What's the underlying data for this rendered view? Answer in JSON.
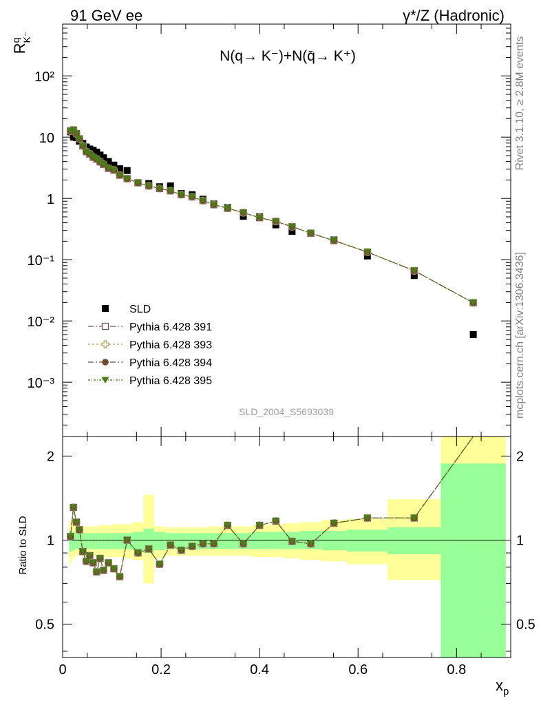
{
  "header": {
    "left": "91 GeV ee",
    "right": "γ*/Z (Hadronic)"
  },
  "side_labels": {
    "rivet": "Rivet 3.1.10, ≥ 2.8M events",
    "mcplots": "mcplots.cern.ch [arXiv:1306.3436]"
  },
  "watermark": "SLD_2004_S5693039",
  "colors": {
    "data": "#000000",
    "s391": "#7b4f62",
    "s393": "#a8a060",
    "s394": "#6e4a2e",
    "s395": "#4e7a1e",
    "band_inner": "#99ff99",
    "band_outer": "#ffff99"
  },
  "chart_data": [
    {
      "type": "scatter",
      "panel": "main",
      "title": "N(q→ K⁻)+N(q̄→ K⁺)",
      "xlabel": "xp",
      "ylabel": "R^q_K⁻",
      "xscale": "linear",
      "yscale": "log",
      "xlim": [
        0,
        0.91
      ],
      "ylim": [
        0.00013,
        700
      ],
      "y_tick_labels": [
        "10⁻³",
        "10⁻²",
        "10⁻¹",
        "1",
        "10",
        "10²"
      ],
      "legend_position": "middle-left",
      "x": [
        0.016,
        0.022,
        0.028,
        0.034,
        0.041,
        0.048,
        0.055,
        0.062,
        0.069,
        0.076,
        0.083,
        0.093,
        0.104,
        0.116,
        0.131,
        0.153,
        0.175,
        0.197,
        0.219,
        0.241,
        0.263,
        0.285,
        0.307,
        0.335,
        0.367,
        0.4,
        0.433,
        0.466,
        0.504,
        0.551,
        0.619,
        0.714,
        0.834
      ],
      "series": [
        {
          "name": "SLD",
          "marker": "square",
          "values": [
            12.2,
            10.0,
            9.8,
            8.6,
            7.9,
            6.9,
            6.4,
            6.1,
            5.7,
            5.1,
            4.6,
            4.0,
            3.5,
            3.05,
            2.85,
            1.8,
            1.75,
            1.55,
            1.6,
            1.2,
            1.15,
            0.97,
            0.81,
            0.71,
            0.51,
            0.5,
            0.37,
            0.29,
            0.27,
            0.21,
            0.115,
            0.055,
            0.006
          ]
        },
        {
          "name": "Pythia 6.428 391",
          "marker": "open-square",
          "values": [
            12.6,
            13.1,
            11.4,
            9.4,
            7.2,
            5.8,
            5.3,
            4.7,
            4.4,
            3.95,
            3.6,
            3.1,
            2.9,
            2.4,
            2.1,
            1.8,
            1.6,
            1.45,
            1.33,
            1.15,
            1.06,
            0.92,
            0.79,
            0.69,
            0.585,
            0.485,
            0.42,
            0.345,
            0.27,
            0.205,
            0.133,
            0.066,
            0.0198
          ]
        },
        {
          "name": "Pythia 6.428 393",
          "marker": "open-cross",
          "values": [
            12.6,
            13.1,
            11.4,
            9.4,
            7.2,
            5.8,
            5.3,
            4.7,
            4.4,
            3.95,
            3.6,
            3.1,
            2.9,
            2.4,
            2.1,
            1.8,
            1.6,
            1.45,
            1.33,
            1.15,
            1.06,
            0.92,
            0.79,
            0.69,
            0.585,
            0.485,
            0.42,
            0.345,
            0.27,
            0.205,
            0.133,
            0.066,
            0.0198
          ]
        },
        {
          "name": "Pythia 6.428 394",
          "marker": "circle",
          "values": [
            12.6,
            13.1,
            11.4,
            9.4,
            7.2,
            5.8,
            5.3,
            4.7,
            4.4,
            3.95,
            3.6,
            3.1,
            2.9,
            2.4,
            2.1,
            1.8,
            1.6,
            1.45,
            1.33,
            1.15,
            1.06,
            0.92,
            0.79,
            0.69,
            0.585,
            0.485,
            0.42,
            0.345,
            0.27,
            0.205,
            0.133,
            0.066,
            0.0198
          ]
        },
        {
          "name": "Pythia 6.428 395",
          "marker": "triangle-down",
          "values": [
            12.6,
            13.1,
            11.4,
            9.4,
            7.2,
            5.8,
            5.3,
            4.7,
            4.4,
            3.95,
            3.6,
            3.1,
            2.9,
            2.4,
            2.1,
            1.8,
            1.6,
            1.45,
            1.33,
            1.15,
            1.06,
            0.92,
            0.79,
            0.69,
            0.585,
            0.485,
            0.42,
            0.345,
            0.27,
            0.205,
            0.133,
            0.066,
            0.0198
          ]
        }
      ]
    },
    {
      "type": "line",
      "panel": "ratio",
      "xlabel": "xp",
      "ylabel": "Ratio to SLD",
      "xscale": "linear",
      "yscale": "log",
      "xlim": [
        0,
        0.91
      ],
      "ylim": [
        0.38,
        2.35
      ],
      "y_ticks": [
        0.5,
        1,
        2
      ],
      "y_tick_labels": [
        "0.5",
        "1",
        "2"
      ],
      "x_ticks": [
        0,
        0.2,
        0.4,
        0.6,
        0.8
      ],
      "x_tick_labels": [
        "0",
        "0.2",
        "0.4",
        "0.6",
        "0.8"
      ],
      "reference_line": 1,
      "x": [
        0.016,
        0.022,
        0.028,
        0.034,
        0.041,
        0.048,
        0.055,
        0.062,
        0.069,
        0.076,
        0.083,
        0.093,
        0.104,
        0.116,
        0.131,
        0.153,
        0.175,
        0.197,
        0.219,
        0.241,
        0.263,
        0.285,
        0.307,
        0.335,
        0.367,
        0.4,
        0.433,
        0.466,
        0.504,
        0.551,
        0.619,
        0.714,
        0.834
      ],
      "values": [
        1.03,
        1.31,
        1.16,
        1.09,
        0.91,
        0.84,
        0.88,
        0.83,
        0.77,
        0.86,
        0.78,
        0.83,
        0.79,
        0.74,
        1.0,
        0.9,
        0.93,
        0.82,
        0.96,
        0.92,
        0.95,
        0.97,
        0.97,
        1.13,
        0.97,
        1.13,
        1.17,
        0.99,
        0.97,
        1.15,
        1.2,
        1.2,
        3.3
      ],
      "bands": [
        {
          "x0": 0.013,
          "x1": 0.019,
          "inner": [
            0.91,
            1.08
          ],
          "outer": [
            0.83,
            1.17
          ]
        },
        {
          "x0": 0.019,
          "x1": 0.025,
          "inner": [
            0.92,
            1.07
          ],
          "outer": [
            0.86,
            1.14
          ]
        },
        {
          "x0": 0.025,
          "x1": 0.031,
          "inner": [
            0.93,
            1.06
          ],
          "outer": [
            0.88,
            1.12
          ]
        },
        {
          "x0": 0.031,
          "x1": 0.038,
          "inner": [
            0.93,
            1.06
          ],
          "outer": [
            0.88,
            1.12
          ]
        },
        {
          "x0": 0.038,
          "x1": 0.045,
          "inner": [
            0.93,
            1.06
          ],
          "outer": [
            0.88,
            1.12
          ]
        },
        {
          "x0": 0.045,
          "x1": 0.052,
          "inner": [
            0.93,
            1.06
          ],
          "outer": [
            0.88,
            1.12
          ]
        },
        {
          "x0": 0.052,
          "x1": 0.059,
          "inner": [
            0.93,
            1.06
          ],
          "outer": [
            0.88,
            1.12
          ]
        },
        {
          "x0": 0.059,
          "x1": 0.066,
          "inner": [
            0.93,
            1.06
          ],
          "outer": [
            0.88,
            1.12
          ]
        },
        {
          "x0": 0.066,
          "x1": 0.073,
          "inner": [
            0.93,
            1.06
          ],
          "outer": [
            0.88,
            1.12
          ]
        },
        {
          "x0": 0.073,
          "x1": 0.08,
          "inner": [
            0.93,
            1.06
          ],
          "outer": [
            0.87,
            1.13
          ]
        },
        {
          "x0": 0.08,
          "x1": 0.088,
          "inner": [
            0.93,
            1.06
          ],
          "outer": [
            0.87,
            1.13
          ]
        },
        {
          "x0": 0.088,
          "x1": 0.099,
          "inner": [
            0.93,
            1.06
          ],
          "outer": [
            0.87,
            1.13
          ]
        },
        {
          "x0": 0.099,
          "x1": 0.11,
          "inner": [
            0.93,
            1.06
          ],
          "outer": [
            0.87,
            1.14
          ]
        },
        {
          "x0": 0.11,
          "x1": 0.123,
          "inner": [
            0.93,
            1.06
          ],
          "outer": [
            0.87,
            1.14
          ]
        },
        {
          "x0": 0.123,
          "x1": 0.142,
          "inner": [
            0.93,
            1.06
          ],
          "outer": [
            0.86,
            1.14
          ]
        },
        {
          "x0": 0.142,
          "x1": 0.164,
          "inner": [
            0.92,
            1.07
          ],
          "outer": [
            0.85,
            1.16
          ]
        },
        {
          "x0": 0.164,
          "x1": 0.186,
          "inner": [
            0.9,
            1.1
          ],
          "outer": [
            0.7,
            1.45
          ]
        },
        {
          "x0": 0.186,
          "x1": 0.208,
          "inner": [
            0.92,
            1.07
          ],
          "outer": [
            0.86,
            1.12
          ]
        },
        {
          "x0": 0.208,
          "x1": 0.23,
          "inner": [
            0.93,
            1.06
          ],
          "outer": [
            0.88,
            1.11
          ]
        },
        {
          "x0": 0.23,
          "x1": 0.252,
          "inner": [
            0.93,
            1.06
          ],
          "outer": [
            0.88,
            1.11
          ]
        },
        {
          "x0": 0.252,
          "x1": 0.274,
          "inner": [
            0.93,
            1.06
          ],
          "outer": [
            0.88,
            1.11
          ]
        },
        {
          "x0": 0.274,
          "x1": 0.296,
          "inner": [
            0.93,
            1.06
          ],
          "outer": [
            0.88,
            1.11
          ]
        },
        {
          "x0": 0.296,
          "x1": 0.318,
          "inner": [
            0.93,
            1.06
          ],
          "outer": [
            0.88,
            1.12
          ]
        },
        {
          "x0": 0.318,
          "x1": 0.351,
          "inner": [
            0.93,
            1.06
          ],
          "outer": [
            0.88,
            1.12
          ]
        },
        {
          "x0": 0.351,
          "x1": 0.384,
          "inner": [
            0.93,
            1.06
          ],
          "outer": [
            0.88,
            1.12
          ]
        },
        {
          "x0": 0.384,
          "x1": 0.417,
          "inner": [
            0.93,
            1.07
          ],
          "outer": [
            0.87,
            1.13
          ]
        },
        {
          "x0": 0.417,
          "x1": 0.45,
          "inner": [
            0.93,
            1.07
          ],
          "outer": [
            0.87,
            1.14
          ]
        },
        {
          "x0": 0.45,
          "x1": 0.483,
          "inner": [
            0.93,
            1.07
          ],
          "outer": [
            0.86,
            1.15
          ]
        },
        {
          "x0": 0.483,
          "x1": 0.526,
          "inner": [
            0.93,
            1.08
          ],
          "outer": [
            0.85,
            1.16
          ]
        },
        {
          "x0": 0.526,
          "x1": 0.577,
          "inner": [
            0.92,
            1.08
          ],
          "outer": [
            0.84,
            1.18
          ]
        },
        {
          "x0": 0.577,
          "x1": 0.66,
          "inner": [
            0.91,
            1.09
          ],
          "outer": [
            0.82,
            1.19
          ]
        },
        {
          "x0": 0.66,
          "x1": 0.768,
          "inner": [
            0.89,
            1.11
          ],
          "outer": [
            0.72,
            1.4
          ]
        },
        {
          "x0": 0.768,
          "x1": 0.9,
          "inner": [
            0.2,
            1.88
          ],
          "outer": [
            0.2,
            3.3
          ]
        }
      ]
    }
  ]
}
